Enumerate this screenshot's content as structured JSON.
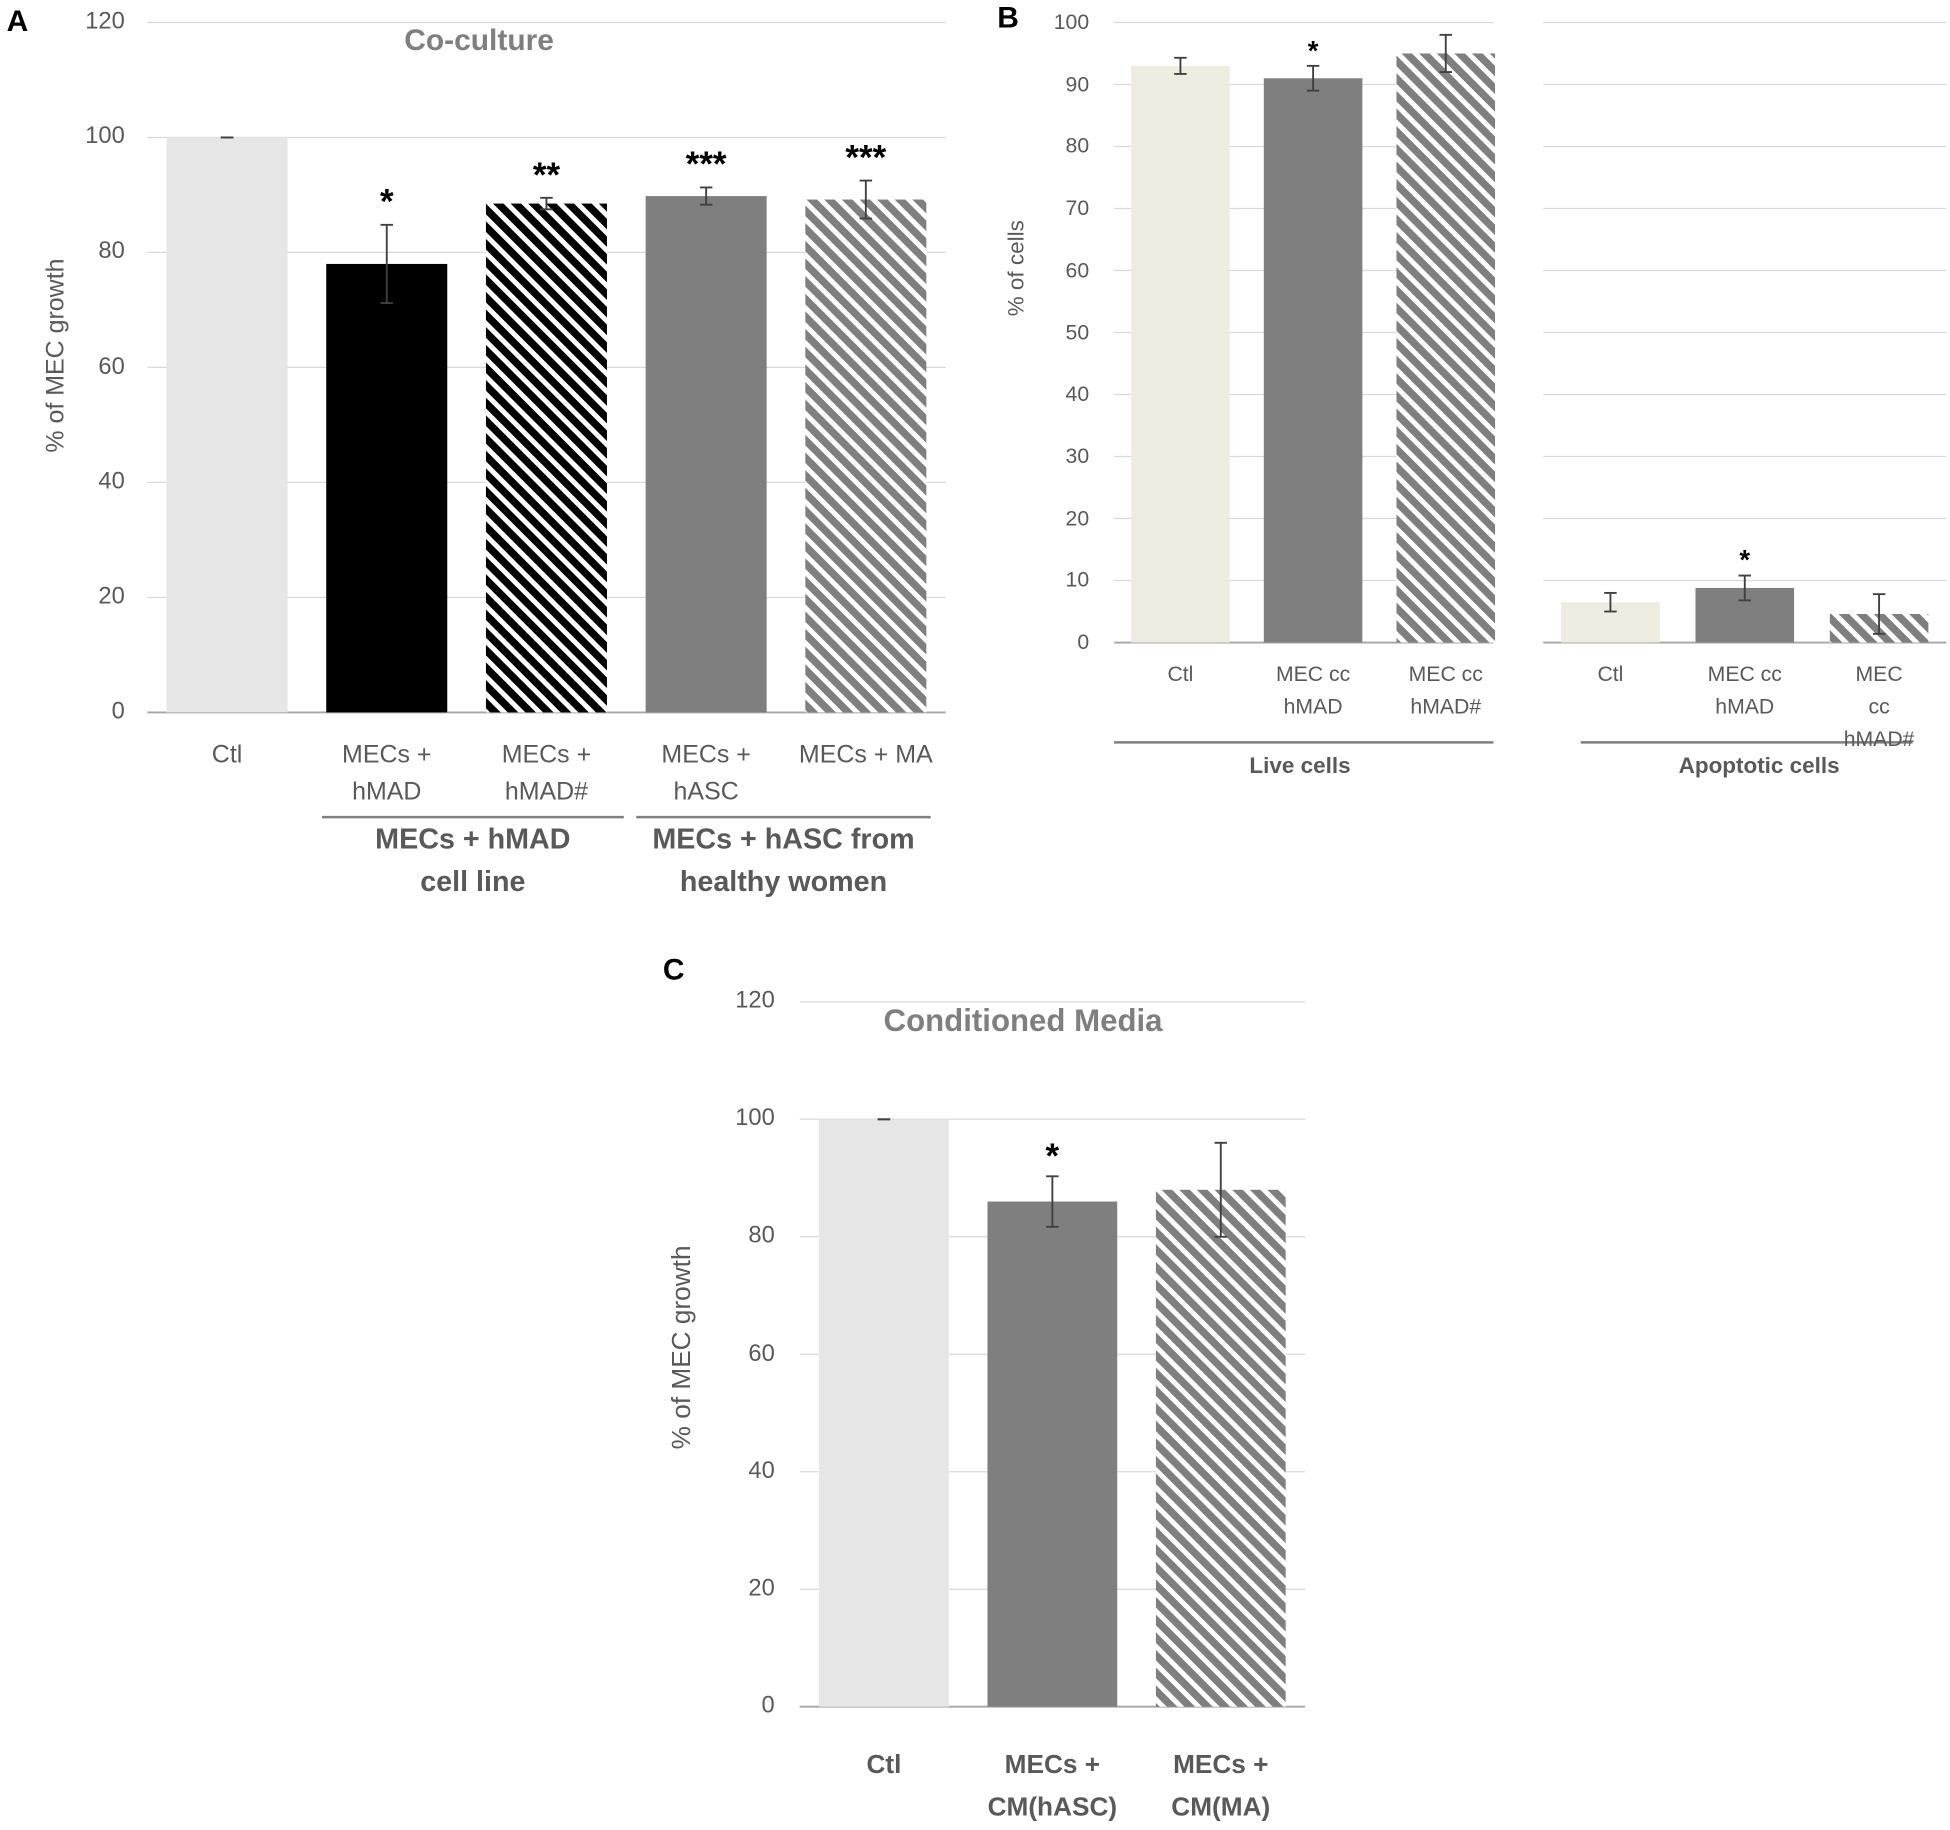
{
  "chart_data": [
    {
      "type": "bar",
      "panel_label": "A",
      "title": "Co-culture",
      "y_label": "% of MEC growth",
      "categories": [
        "Ctl",
        "MECs +\nhMAD",
        "MECs +\nhMAD#",
        "MECs +\nhASC",
        "MECs + MA"
      ],
      "values": [
        100,
        78,
        88.5,
        89.8,
        89.2
      ],
      "errors": [
        0,
        6.8,
        1,
        1.5,
        3.3
      ],
      "significance": [
        null,
        "*",
        "**",
        "***",
        "***"
      ],
      "colors": [
        "#e6e6e6",
        "#000000",
        "#000000",
        "#7f7f7f",
        "#7f7f7f"
      ],
      "patterns": [
        "solid",
        "solid",
        "hatch",
        "solid",
        "hatch"
      ],
      "groups": [
        "MECs + hMAD\ncell line",
        "MECs + hASC from\nhealthy women"
      ],
      "ylim": [
        0,
        120
      ],
      "yticks": [
        0,
        20,
        40,
        60,
        80,
        100,
        120
      ],
      "grid": true
    },
    {
      "type": "bar",
      "panel_label": "B",
      "y_label": "% of cells",
      "panels": [
        {
          "label": "Live cells",
          "categories": [
            "Ctl",
            "MEC cc\nhMAD",
            "MEC cc\nhMAD#"
          ],
          "values": [
            93,
            91,
            95
          ],
          "errors": [
            1.3,
            2,
            3
          ],
          "significance": [
            null,
            "*",
            null
          ],
          "colors": [
            "#eeece1",
            "#7f7f7f",
            "#7f7f7f"
          ],
          "patterns": [
            "solid",
            "solid",
            "hatch"
          ]
        },
        {
          "label": "Apoptotic cells",
          "categories": [
            "Ctl",
            "MEC cc\nhMAD",
            "MEC cc\nhMAD#"
          ],
          "values": [
            6.5,
            8.8,
            4.6
          ],
          "errors": [
            1.5,
            2,
            3.2
          ],
          "significance": [
            null,
            "*",
            null
          ],
          "colors": [
            "#eeece1",
            "#7f7f7f",
            "#7f7f7f"
          ],
          "patterns": [
            "solid",
            "solid",
            "hatch"
          ]
        }
      ],
      "ylim": [
        0,
        100
      ],
      "yticks": [
        0,
        10,
        20,
        30,
        40,
        50,
        60,
        70,
        80,
        90,
        100
      ],
      "grid": true
    },
    {
      "type": "bar",
      "panel_label": "C",
      "title": "Conditioned Media",
      "y_label": "% of MEC growth",
      "categories": [
        "Ctl",
        "MECs +\nCM(hASC)",
        "MECs +\nCM(MA)"
      ],
      "values": [
        100,
        86,
        88
      ],
      "errors": [
        0,
        4.3,
        8
      ],
      "significance": [
        null,
        "*",
        null
      ],
      "colors": [
        "#e6e6e6",
        "#7f7f7f",
        "#7f7f7f"
      ],
      "patterns": [
        "solid",
        "solid",
        "hatch"
      ],
      "ylim": [
        0,
        120
      ],
      "yticks": [
        0,
        20,
        40,
        60,
        80,
        100,
        120
      ],
      "grid": true
    }
  ]
}
